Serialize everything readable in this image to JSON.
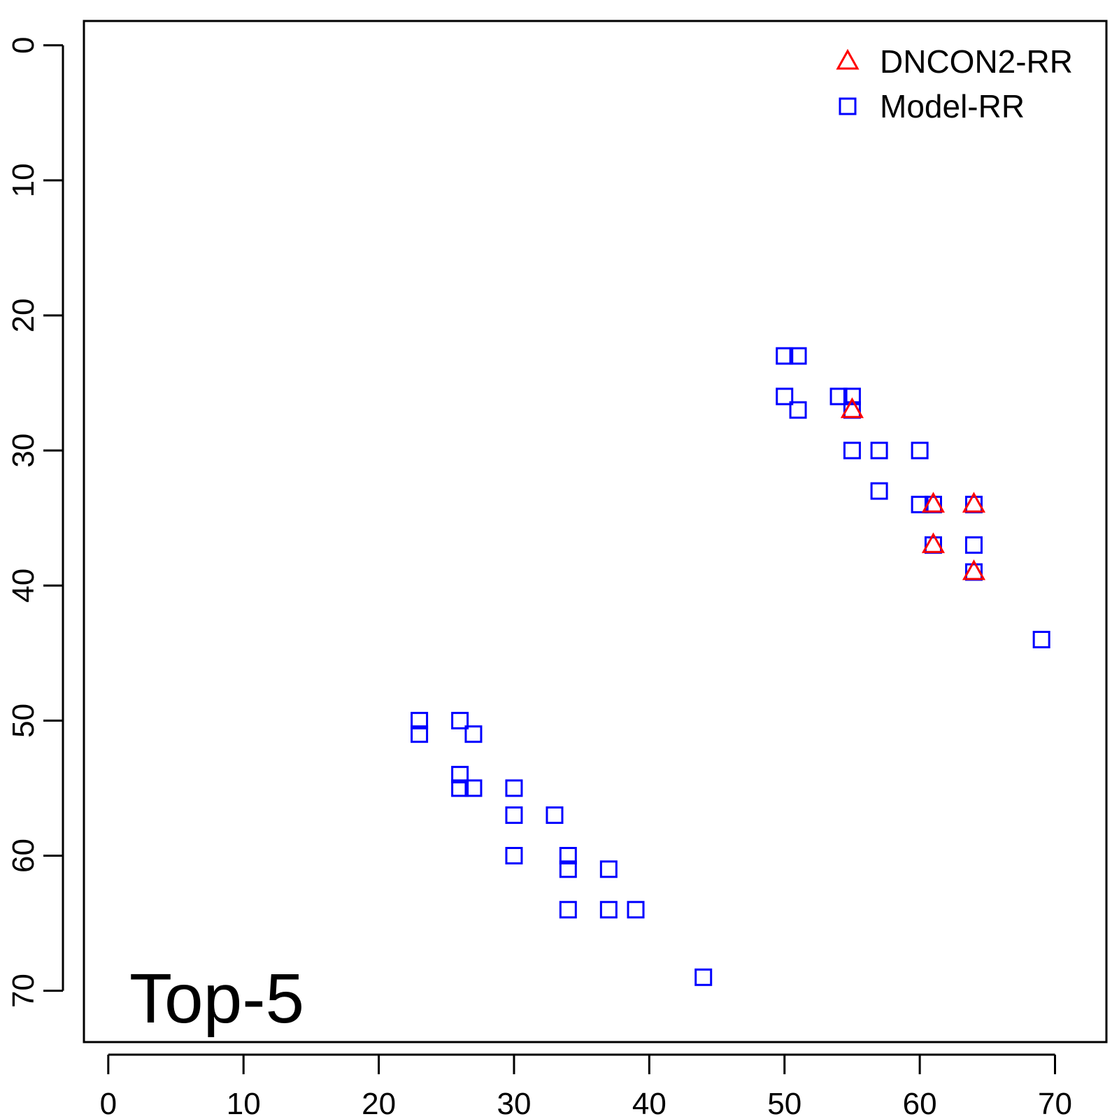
{
  "chart_data": {
    "type": "scatter",
    "title": "",
    "xlabel": "",
    "ylabel": "",
    "xlim": [
      -1.8,
      73.8
    ],
    "ylim": [
      -1.8,
      73.8
    ],
    "y_reversed": true,
    "grid": false,
    "legend_position": "top-right",
    "x_ticks": [
      "0",
      "10",
      "20",
      "30",
      "40",
      "50",
      "60",
      "70"
    ],
    "y_ticks": [
      "0",
      "10",
      "20",
      "30",
      "40",
      "50",
      "60",
      "70"
    ],
    "annotation": "Top-5",
    "series": [
      {
        "name": "DNCON2-RR",
        "marker": "triangle",
        "color": "#ff0000",
        "points": [
          [
            55,
            27
          ],
          [
            61,
            34
          ],
          [
            64,
            34
          ],
          [
            61,
            37
          ],
          [
            64,
            39
          ]
        ]
      },
      {
        "name": "Model-RR",
        "marker": "square",
        "color": "#0000ff",
        "points": [
          [
            50,
            23
          ],
          [
            51,
            23
          ],
          [
            50,
            26
          ],
          [
            54,
            26
          ],
          [
            55,
            26
          ],
          [
            51,
            27
          ],
          [
            55,
            27
          ],
          [
            55,
            30
          ],
          [
            57,
            30
          ],
          [
            60,
            30
          ],
          [
            57,
            33
          ],
          [
            60,
            34
          ],
          [
            61,
            34
          ],
          [
            64,
            34
          ],
          [
            61,
            37
          ],
          [
            64,
            37
          ],
          [
            64,
            39
          ],
          [
            69,
            44
          ],
          [
            23,
            50
          ],
          [
            26,
            50
          ],
          [
            23,
            51
          ],
          [
            27,
            51
          ],
          [
            26,
            54
          ],
          [
            26,
            55
          ],
          [
            27,
            55
          ],
          [
            30,
            55
          ],
          [
            30,
            57
          ],
          [
            33,
            57
          ],
          [
            30,
            60
          ],
          [
            34,
            60
          ],
          [
            34,
            61
          ],
          [
            37,
            61
          ],
          [
            34,
            64
          ],
          [
            37,
            64
          ],
          [
            39,
            64
          ],
          [
            44,
            69
          ]
        ]
      }
    ]
  }
}
